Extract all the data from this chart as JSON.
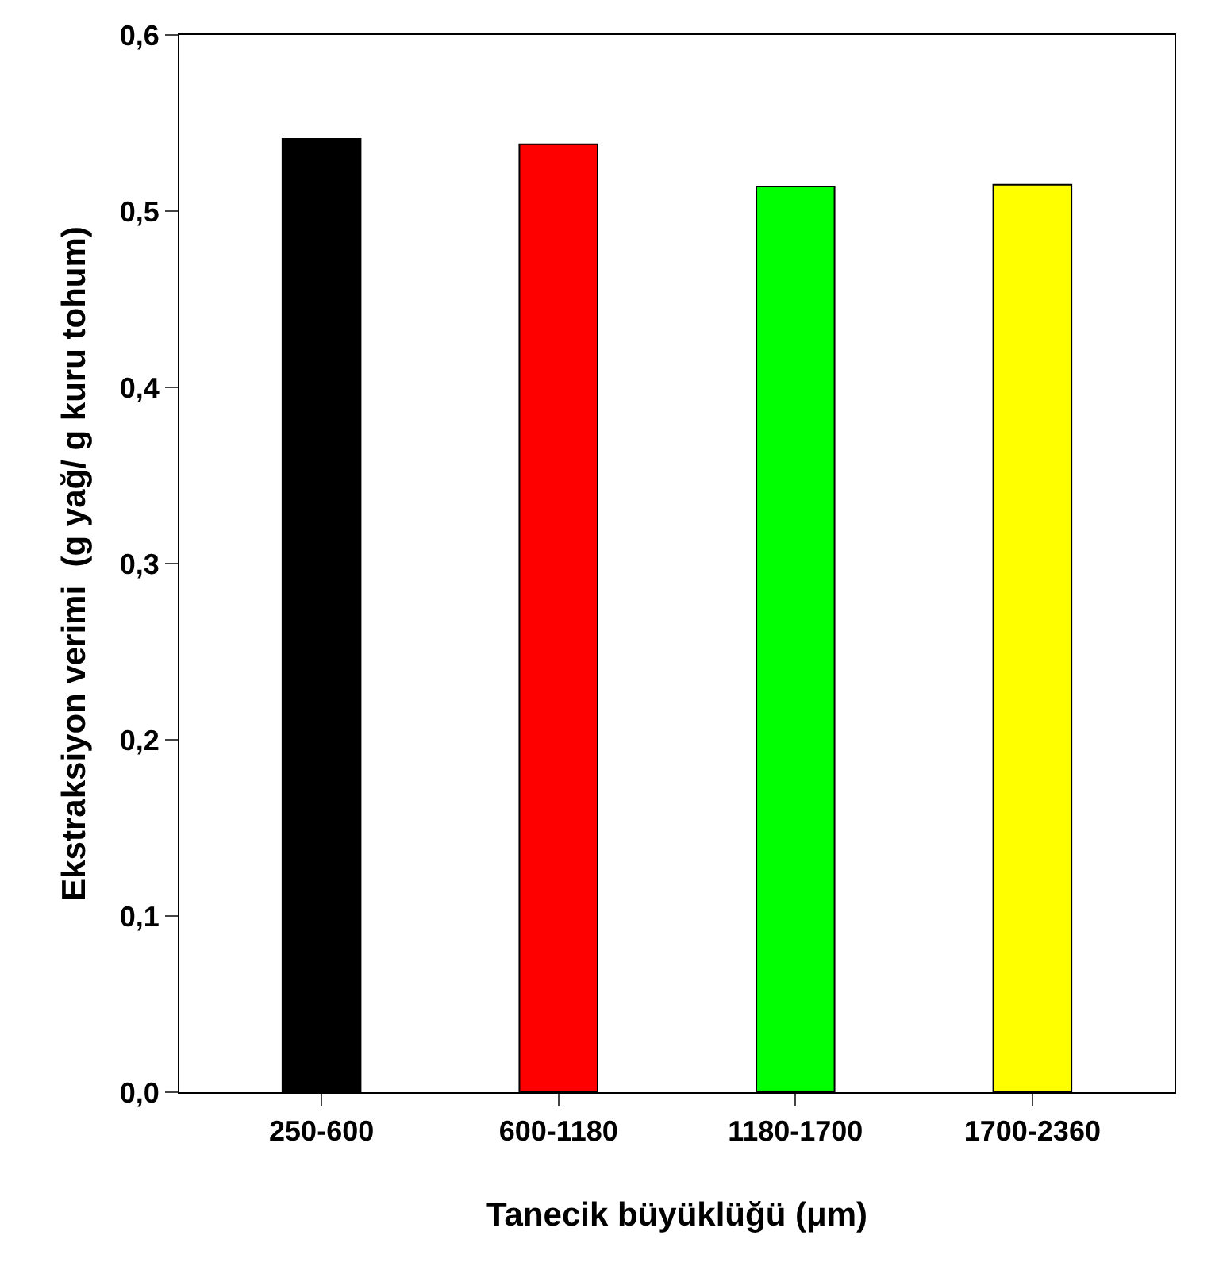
{
  "chart_data": {
    "type": "bar",
    "xlabel": "Tanecik büyüklüğü (μm)",
    "ylabel": "Ekstraksiyon verimi  (g yağ/ g kuru tohum)",
    "categories": [
      "250-600",
      "600-1180",
      "1180-1700",
      "1700-2360"
    ],
    "values": [
      0.541,
      0.538,
      0.514,
      0.515
    ],
    "colors": [
      "#000000",
      "#ff0000",
      "#00ff00",
      "#ffff00"
    ],
    "ylim": [
      0,
      0.6
    ],
    "yticks": [
      {
        "value": 0,
        "label": "0,0"
      },
      {
        "value": 0.1,
        "label": "0,1"
      },
      {
        "value": 0.2,
        "label": "0,2"
      },
      {
        "value": 0.3,
        "label": "0,3"
      },
      {
        "value": 0.4,
        "label": "0,4"
      },
      {
        "value": 0.5,
        "label": "0,5"
      },
      {
        "value": 0.6,
        "label": "0,6"
      }
    ],
    "legend": false
  }
}
